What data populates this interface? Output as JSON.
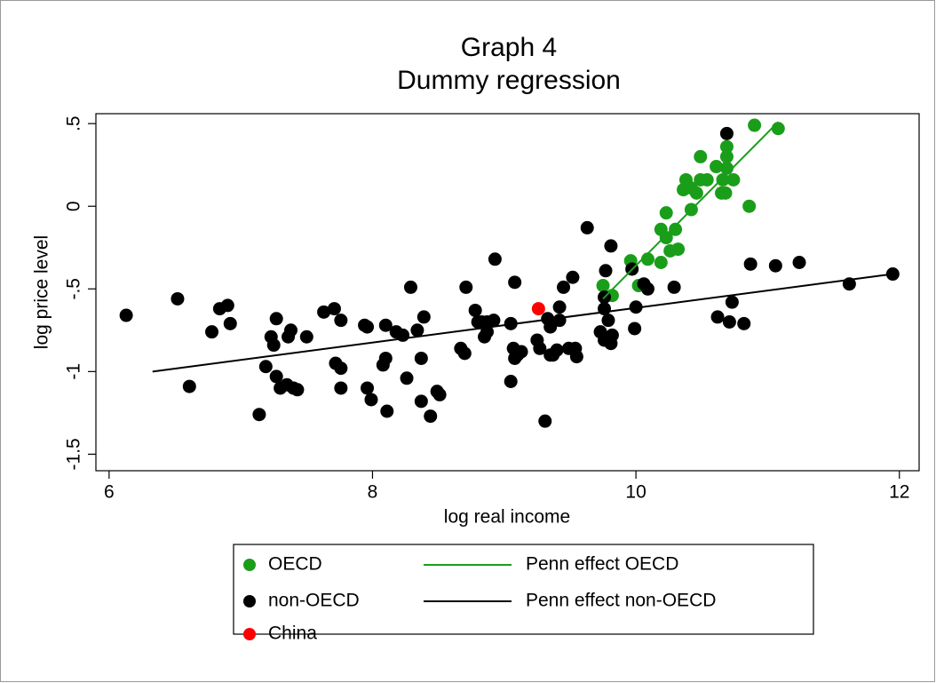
{
  "chart_data": {
    "type": "scatter",
    "title": "Graph 4",
    "subtitle": "Dummy regression",
    "xlabel": "log real income",
    "ylabel": "log price level",
    "xlim": [
      5.9,
      12.15
    ],
    "ylim": [
      -1.6,
      0.56
    ],
    "xticks": [
      6,
      8,
      10,
      12
    ],
    "yticks": [
      {
        "value": -1.5,
        "label": "-1.5"
      },
      -1,
      {
        "value": -0.5,
        "label": "-.5"
      },
      0,
      {
        "value": 0.5,
        "label": ".5"
      }
    ],
    "grid": false,
    "series": [
      {
        "name": "OECD",
        "type": "scatter",
        "color": "#1a9e1a",
        "x": [
          10.9,
          11.08,
          10.69,
          10.69,
          10.49,
          10.69,
          10.66,
          10.74,
          10.61,
          10.54,
          10.49,
          10.38,
          10.65,
          10.68,
          10.86,
          10.42,
          10.46,
          10.36,
          10.42,
          10.23,
          10.19,
          10.23,
          10.3,
          10.19,
          10.32,
          10.26,
          10.09,
          9.96,
          10.02,
          9.82,
          9.75
        ],
        "values": [
          0.49,
          0.47,
          0.36,
          0.3,
          0.3,
          0.23,
          0.16,
          0.16,
          0.24,
          0.16,
          0.16,
          0.16,
          0.08,
          0.08,
          0.0,
          0.11,
          0.08,
          0.1,
          -0.02,
          -0.04,
          -0.14,
          -0.19,
          -0.14,
          -0.34,
          -0.26,
          -0.27,
          -0.32,
          -0.33,
          -0.48,
          -0.54,
          -0.48
        ]
      },
      {
        "name": "non-OECD",
        "type": "scatter",
        "color": "#000000",
        "x": [
          6.13,
          6.52,
          6.61,
          6.78,
          6.84,
          6.9,
          6.92,
          7.14,
          7.19,
          7.23,
          7.25,
          7.27,
          7.27,
          7.3,
          7.35,
          7.36,
          7.38,
          7.4,
          7.43,
          7.5,
          7.63,
          7.71,
          7.72,
          7.76,
          7.76,
          7.76,
          7.94,
          7.96,
          7.96,
          7.99,
          8.08,
          8.1,
          8.1,
          8.11,
          8.18,
          8.23,
          8.26,
          8.29,
          8.34,
          8.37,
          8.37,
          8.39,
          8.44,
          8.49,
          8.51,
          8.67,
          8.7,
          8.71,
          8.78,
          8.8,
          8.83,
          8.85,
          8.87,
          8.87,
          8.93,
          8.92,
          9.05,
          9.07,
          9.08,
          9.08,
          9.1,
          9.13,
          9.05,
          9.25,
          9.27,
          9.31,
          9.33,
          9.35,
          9.35,
          9.37,
          9.4,
          9.42,
          9.42,
          9.45,
          9.49,
          9.52,
          9.54,
          9.55,
          9.63,
          9.73,
          9.76,
          9.76,
          9.76,
          9.77,
          9.79,
          9.82,
          9.81,
          9.81,
          9.97,
          9.99,
          10.0,
          10.06,
          10.09,
          10.29,
          10.62,
          10.71,
          10.73,
          10.82,
          10.87,
          11.06,
          11.24,
          11.62,
          11.95,
          10.69
        ],
        "values": [
          -0.66,
          -0.56,
          -1.09,
          -0.76,
          -0.62,
          -0.6,
          -0.71,
          -1.26,
          -0.97,
          -0.79,
          -0.84,
          -0.68,
          -1.03,
          -1.1,
          -1.08,
          -0.79,
          -0.75,
          -1.1,
          -1.11,
          -0.79,
          -0.64,
          -0.62,
          -0.95,
          -0.98,
          -0.69,
          -1.1,
          -0.72,
          -0.73,
          -1.1,
          -1.17,
          -0.96,
          -0.72,
          -0.92,
          -1.24,
          -0.76,
          -0.78,
          -1.04,
          -0.49,
          -0.75,
          -1.18,
          -0.92,
          -0.67,
          -1.27,
          -1.12,
          -1.14,
          -0.86,
          -0.89,
          -0.49,
          -0.63,
          -0.7,
          -0.7,
          -0.79,
          -0.76,
          -0.7,
          -0.32,
          -0.69,
          -0.71,
          -0.86,
          -0.92,
          -0.46,
          -0.9,
          -0.88,
          -1.06,
          -0.81,
          -0.86,
          -1.3,
          -0.68,
          -0.73,
          -0.9,
          -0.9,
          -0.87,
          -0.61,
          -0.69,
          -0.49,
          -0.86,
          -0.43,
          -0.86,
          -0.91,
          -0.13,
          -0.76,
          -0.81,
          -0.62,
          -0.55,
          -0.39,
          -0.69,
          -0.78,
          -0.24,
          -0.83,
          -0.38,
          -0.74,
          -0.61,
          -0.47,
          -0.5,
          -0.49,
          -0.67,
          -0.7,
          -0.58,
          -0.71,
          -0.35,
          -0.36,
          -0.34,
          -0.47,
          -0.41,
          0.44
        ]
      },
      {
        "name": "China",
        "type": "scatter",
        "color": "#ff0000",
        "x": [
          9.26
        ],
        "values": [
          -0.62
        ]
      },
      {
        "name": "Penn effect OECD",
        "type": "line",
        "color": "#1a9e1a",
        "x": [
          9.75,
          11.08
        ],
        "values": [
          -0.56,
          0.51
        ]
      },
      {
        "name": "Penn effect non-OECD",
        "type": "line",
        "color": "#000000",
        "x": [
          6.33,
          11.95
        ],
        "values": [
          -1.0,
          -0.41
        ]
      }
    ]
  }
}
